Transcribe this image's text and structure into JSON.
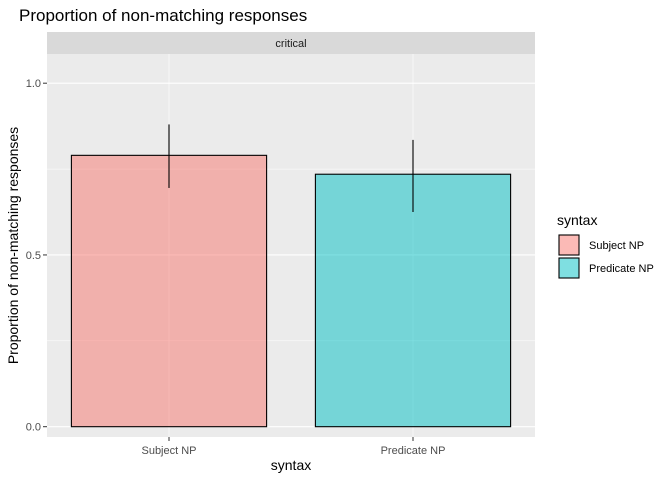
{
  "chart_data": {
    "type": "bar",
    "title": "Proportion of non-matching responses",
    "facet_label": "critical",
    "xlabel": "syntax",
    "ylabel": "Proportion of non-matching responses",
    "categories": [
      "Subject NP",
      "Predicate NP"
    ],
    "values": [
      0.79,
      0.735
    ],
    "error_bars": [
      {
        "lower": 0.695,
        "upper": 0.88
      },
      {
        "lower": 0.625,
        "upper": 0.835
      }
    ],
    "ylim": [
      -0.03,
      1.085
    ],
    "yticks": [
      0.0,
      0.5,
      1.0
    ],
    "ytick_labels": [
      "0.0",
      "0.5",
      "1.0"
    ],
    "grid": true,
    "legend": {
      "title": "syntax",
      "position": "right",
      "entries": [
        {
          "label": "Subject NP",
          "color": "#F8766D"
        },
        {
          "label": "Predicate NP",
          "color": "#00BFC4"
        }
      ]
    },
    "colors": {
      "panel_background": "#EBEBEB",
      "strip_background": "#D9D9D9",
      "grid_major": "#FFFFFF",
      "bar_outline": "#000000",
      "bar_alpha": 0.5
    }
  }
}
